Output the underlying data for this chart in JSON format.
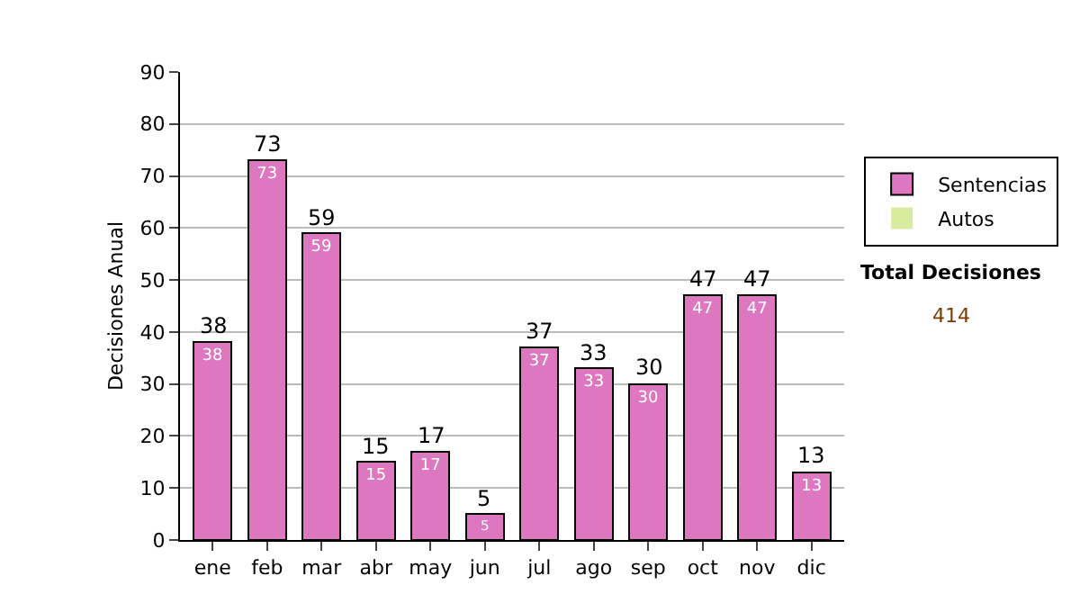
{
  "chart_data": {
    "type": "bar",
    "ylabel": "Decisiones Anual",
    "categories": [
      "ene",
      "feb",
      "mar",
      "abr",
      "may",
      "jun",
      "jul",
      "ago",
      "sep",
      "oct",
      "nov",
      "dic"
    ],
    "series": [
      {
        "name": "Sentencias",
        "color": "#dd77c0",
        "values": [
          38,
          73,
          59,
          15,
          17,
          5,
          37,
          33,
          30,
          47,
          47,
          13
        ],
        "value_labels": [
          "38",
          "73",
          "59",
          "15",
          "17",
          "5",
          "37",
          "33",
          "30",
          "47",
          "47",
          "13"
        ]
      },
      {
        "name": "Autos",
        "color": "#d8eca0",
        "values": [
          0,
          0,
          0,
          0,
          0,
          0,
          0,
          0,
          0,
          0,
          0,
          0
        ]
      }
    ],
    "stacked": true,
    "totals": [
      "38",
      "73",
      "59",
      "15",
      "17",
      "5",
      "37",
      "33",
      "30",
      "47",
      "47",
      "13"
    ],
    "ylim": [
      0,
      90
    ],
    "yticks": [
      0,
      10,
      20,
      30,
      40,
      50,
      60,
      70,
      80,
      90
    ],
    "grid": "y",
    "legend": "right",
    "annotations": [
      "Total Decisiones",
      "414"
    ]
  }
}
